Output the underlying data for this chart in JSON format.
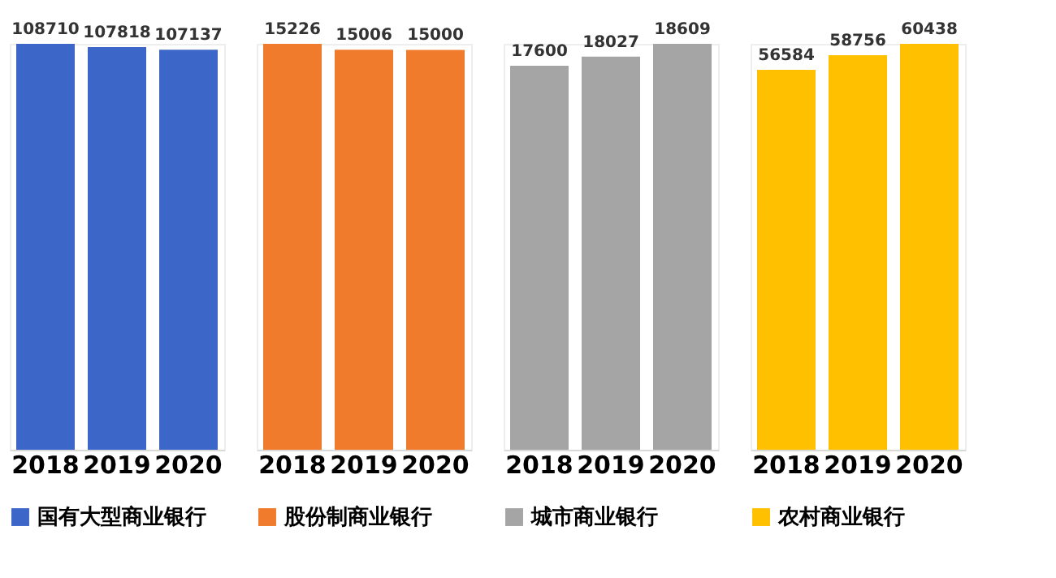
{
  "chart_data": [
    {
      "type": "bar",
      "categories": [
        "2018",
        "2019",
        "2020"
      ],
      "series": [
        {
          "name": "国有大型商业银行",
          "color": "#3d66c9",
          "values": [
            108710,
            107818,
            107137
          ]
        }
      ],
      "data_labels": true,
      "legend": "bottom"
    },
    {
      "type": "bar",
      "categories": [
        "2018",
        "2019",
        "2020"
      ],
      "series": [
        {
          "name": "股份制商业银行",
          "color": "#f07b2c",
          "values": [
            15226,
            15006,
            15000
          ]
        }
      ],
      "data_labels": true,
      "legend": "bottom"
    },
    {
      "type": "bar",
      "categories": [
        "2018",
        "2019",
        "2020"
      ],
      "series": [
        {
          "name": "城市商业银行",
          "color": "#a5a5a5",
          "values": [
            17600,
            18027,
            18609
          ]
        }
      ],
      "data_labels": true,
      "legend": "bottom"
    },
    {
      "type": "bar",
      "categories": [
        "2018",
        "2019",
        "2020"
      ],
      "series": [
        {
          "name": "农村商业银行",
          "color": "#ffc000",
          "values": [
            56584,
            58756,
            60438
          ]
        }
      ],
      "data_labels": true,
      "legend": "bottom"
    }
  ]
}
